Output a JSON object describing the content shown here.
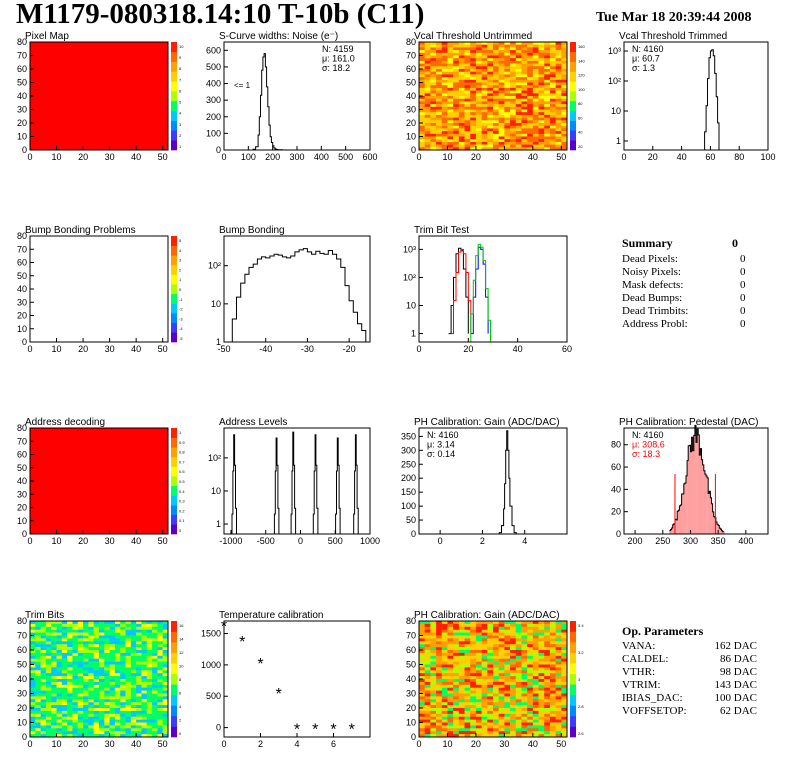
{
  "header": {
    "title": "M1179-080318.14:10 T-10b (C11)",
    "date": "Tue Mar 18 20:39:44 2008"
  },
  "colors": {
    "red": "#ff0000",
    "palette": [
      "#5c00c8",
      "#3c3cff",
      "#0088ff",
      "#00c8ff",
      "#00ff64",
      "#aaff00",
      "#ffff00",
      "#ffd000",
      "#ffa000",
      "#ff6a00",
      "#ff2000"
    ]
  },
  "summary": {
    "title": "Summary",
    "total": "0",
    "rows": [
      {
        "label": "Dead Pixels:",
        "value": "0"
      },
      {
        "label": "Noisy Pixels:",
        "value": "0"
      },
      {
        "label": "Mask defects:",
        "value": "0"
      },
      {
        "label": "Dead Bumps:",
        "value": "0"
      },
      {
        "label": "Dead Trimbits:",
        "value": "0"
      },
      {
        "label": "Address Probl:",
        "value": "0"
      }
    ]
  },
  "op_params": {
    "title": "Op. Parameters",
    "rows": [
      {
        "label": "VANA:",
        "value": "162 DAC"
      },
      {
        "label": "CALDEL:",
        "value": "86 DAC"
      },
      {
        "label": "VTHR:",
        "value": "98 DAC"
      },
      {
        "label": "VTRIM:",
        "value": "143 DAC"
      },
      {
        "label": "IBIAS_DAC:",
        "value": "100 DAC"
      },
      {
        "label": "VOFFSETOP:",
        "value": "62 DAC"
      }
    ]
  },
  "chart_data": [
    {
      "id": "pixel-map",
      "type": "heatmap",
      "title": "Pixel Map",
      "xlim": [
        0,
        52
      ],
      "ylim": [
        0,
        80
      ],
      "xticks": [
        "0",
        "10",
        "20",
        "30",
        "40",
        "50"
      ],
      "yticks": [
        "0",
        "10",
        "20",
        "30",
        "40",
        "50",
        "60",
        "70",
        "80"
      ],
      "fill": "uniform",
      "value": 10,
      "zticks": [
        "10",
        "9",
        "8",
        "7",
        "6",
        "5",
        "4",
        "3",
        "2",
        "1"
      ]
    },
    {
      "id": "s-curve-noise",
      "type": "line",
      "title": "S-Curve widths: Noise (e⁻)",
      "xlim": [
        0,
        600
      ],
      "ylim": [
        0,
        650
      ],
      "xticks": [
        "0",
        "100",
        "200",
        "300",
        "400",
        "500",
        "600"
      ],
      "yticks": [
        "0",
        "100",
        "200",
        "300",
        "400",
        "500",
        "600"
      ],
      "stats": [
        "N: 4159",
        "μ: 161.0",
        "σ: 18.2"
      ],
      "annotation": "<= 1",
      "x": [
        110,
        120,
        130,
        140,
        145,
        150,
        155,
        160,
        165,
        170,
        175,
        180,
        185,
        190,
        195,
        200,
        205,
        210,
        215,
        220,
        230,
        240
      ],
      "y": [
        0,
        5,
        20,
        90,
        200,
        330,
        480,
        560,
        580,
        500,
        380,
        260,
        150,
        80,
        45,
        25,
        12,
        6,
        3,
        2,
        1,
        0
      ]
    },
    {
      "id": "vcal-untrimmed",
      "type": "heatmap",
      "title": "Vcal Threshold Untrimmed",
      "xlim": [
        0,
        52
      ],
      "ylim": [
        0,
        80
      ],
      "xticks": [
        "0",
        "10",
        "20",
        "30",
        "40",
        "50"
      ],
      "yticks": [
        "0",
        "10",
        "20",
        "30",
        "40",
        "50",
        "60",
        "70",
        "80"
      ],
      "fill": "noisy-warm",
      "zticks": [
        "160",
        "140",
        "120",
        "100",
        "80",
        "60",
        "40",
        "20"
      ]
    },
    {
      "id": "vcal-trimmed",
      "type": "line",
      "title": "Vcal Threshold Trimmed",
      "xlim": [
        0,
        100
      ],
      "ylog": true,
      "ylim": [
        0.5,
        2000
      ],
      "xticks": [
        "0",
        "20",
        "40",
        "60",
        "80",
        "100"
      ],
      "yticks": [
        "1",
        "10",
        "10²",
        "10³"
      ],
      "stats": [
        "N: 4160",
        "μ: 60.7",
        "σ: 1.3"
      ],
      "x": [
        54,
        56,
        57,
        58,
        59,
        60,
        61,
        62,
        63,
        64,
        65,
        66
      ],
      "y": [
        0,
        2,
        15,
        120,
        600,
        1000,
        1100,
        700,
        180,
        30,
        4,
        0
      ]
    },
    {
      "id": "bump-bonding-problems",
      "type": "heatmap",
      "title": "Bump Bonding Problems",
      "xlim": [
        0,
        52
      ],
      "ylim": [
        0,
        80
      ],
      "xticks": [
        "0",
        "10",
        "20",
        "30",
        "40",
        "50"
      ],
      "yticks": [
        "0",
        "10",
        "20",
        "30",
        "40",
        "50",
        "60",
        "70",
        "80"
      ],
      "fill": "empty",
      "zticks": [
        "5",
        "4",
        "3",
        "2",
        "1",
        "0",
        "-1",
        "-2",
        "-3",
        "-4",
        "-5"
      ]
    },
    {
      "id": "bump-bonding",
      "type": "line",
      "title": "Bump Bonding",
      "xlim": [
        -50,
        -15
      ],
      "ylog": true,
      "ylim": [
        1,
        600
      ],
      "xticks": [
        "-50",
        "-40",
        "-30",
        "-20"
      ],
      "yticks": [
        "1",
        "10",
        "10²"
      ],
      "x": [
        -49,
        -48,
        -47,
        -46,
        -45,
        -44,
        -43,
        -42,
        -41,
        -40,
        -39,
        -38,
        -37,
        -36,
        -35,
        -34,
        -33,
        -32,
        -31,
        -30,
        -29,
        -28,
        -27,
        -26,
        -25,
        -24,
        -23,
        -22,
        -21,
        -20,
        -19,
        -18,
        -17,
        -16
      ],
      "y": [
        1,
        4,
        15,
        35,
        60,
        90,
        110,
        150,
        170,
        160,
        180,
        200,
        190,
        170,
        160,
        180,
        230,
        260,
        280,
        230,
        200,
        240,
        210,
        200,
        250,
        200,
        150,
        90,
        30,
        12,
        6,
        3,
        2,
        1
      ]
    },
    {
      "id": "trim-bit-test",
      "type": "line",
      "title": "Trim Bit Test",
      "xlim": [
        0,
        60
      ],
      "ylog": true,
      "ylim": [
        0.5,
        3000
      ],
      "xticks": [
        "0",
        "20",
        "40",
        "60"
      ],
      "yticks": [
        "1",
        "10",
        "10²",
        "10³"
      ],
      "series": [
        {
          "color": "#000000",
          "x": [
            12,
            13,
            14,
            15,
            16,
            17,
            18,
            19,
            20
          ],
          "y": [
            1,
            10,
            100,
            700,
            1100,
            900,
            200,
            20,
            1
          ]
        },
        {
          "color": "#ff0000",
          "x": [
            13,
            14,
            15,
            16,
            17,
            18,
            19,
            20,
            21
          ],
          "y": [
            1,
            15,
            150,
            800,
            1000,
            700,
            150,
            15,
            1
          ]
        },
        {
          "color": "#0000ff",
          "x": [
            21,
            22,
            23,
            24,
            25,
            26,
            27,
            28
          ],
          "y": [
            1,
            20,
            200,
            1200,
            1000,
            300,
            20,
            1
          ]
        },
        {
          "color": "#00c800",
          "x": [
            0,
            20,
            21,
            22,
            23,
            24,
            25,
            26,
            27,
            28,
            29,
            60
          ],
          "y": [
            0.5,
            0.5,
            5,
            80,
            600,
            1500,
            1200,
            400,
            40,
            3,
            0.5,
            0.5
          ]
        }
      ]
    },
    {
      "id": "address-decoding",
      "type": "heatmap",
      "title": "Address decoding",
      "xlim": [
        0,
        52
      ],
      "ylim": [
        0,
        80
      ],
      "xticks": [
        "0",
        "10",
        "20",
        "30",
        "40",
        "50"
      ],
      "yticks": [
        "0",
        "10",
        "20",
        "30",
        "40",
        "50",
        "60",
        "70",
        "80"
      ],
      "fill": "uniform",
      "value": 1,
      "zticks": [
        "1",
        "0.9",
        "0.8",
        "0.7",
        "0.6",
        "0.5",
        "0.4",
        "0.3",
        "0.2",
        "0.1",
        "0"
      ]
    },
    {
      "id": "address-levels",
      "type": "line",
      "title": "Address Levels",
      "xlim": [
        -1100,
        1000
      ],
      "ylog": true,
      "ylim": [
        0.5,
        800
      ],
      "xticks": [
        "-1000",
        "-500",
        "0",
        "500",
        "1000"
      ],
      "yticks": [
        "1",
        "10",
        "10²"
      ],
      "peaks": [
        -960,
        -350,
        -110,
        210,
        530,
        790
      ],
      "peak_heights": [
        500,
        400,
        600,
        500,
        400,
        500
      ]
    },
    {
      "id": "ph-gain",
      "type": "line",
      "title": "PH Calibration: Gain (ADC/DAC)",
      "xlim": [
        -1,
        6
      ],
      "ylim": [
        0,
        380
      ],
      "xticks": [
        "0",
        "2",
        "4"
      ],
      "yticks": [
        "0",
        "50",
        "100",
        "150",
        "200",
        "250",
        "300",
        "350"
      ],
      "stats": [
        "N: 4160",
        "μ: 3.14",
        "σ: 0.14"
      ],
      "x": [
        2.7,
        2.8,
        2.9,
        3.0,
        3.05,
        3.1,
        3.15,
        3.2,
        3.25,
        3.3,
        3.4,
        3.5,
        3.6
      ],
      "y": [
        0,
        5,
        30,
        90,
        180,
        300,
        370,
        300,
        200,
        100,
        30,
        5,
        0
      ]
    },
    {
      "id": "ph-pedestal",
      "type": "line",
      "title": "PH Calibration: Pedestal (DAC)",
      "xlim": [
        180,
        440
      ],
      "ylim": [
        0,
        95
      ],
      "xticks": [
        "200",
        "250",
        "300",
        "350",
        "400"
      ],
      "yticks": [
        "0",
        "20",
        "40",
        "60",
        "80"
      ],
      "stats": [
        "N: 4160",
        "μ: 308.6",
        "σ: 18.3"
      ],
      "mu": 308.6,
      "sigma": 18.3,
      "peak": 88,
      "cut_lines": [
        272,
        345
      ]
    },
    {
      "id": "trim-bits",
      "type": "heatmap",
      "title": "Trim Bits",
      "xlim": [
        0,
        52
      ],
      "ylim": [
        0,
        80
      ],
      "xticks": [
        "0",
        "10",
        "20",
        "30",
        "40",
        "50"
      ],
      "yticks": [
        "0",
        "10",
        "20",
        "30",
        "40",
        "50",
        "60",
        "70",
        "80"
      ],
      "fill": "noisy-green",
      "zticks": [
        "16",
        "14",
        "12",
        "10",
        "8",
        "6",
        "4",
        "2",
        "0"
      ]
    },
    {
      "id": "temperature-calibration",
      "type": "scatter",
      "title": "Temperature calibration",
      "xlim": [
        0,
        8
      ],
      "ylim": [
        -150,
        1700
      ],
      "xticks": [
        "0",
        "2",
        "4",
        "6"
      ],
      "yticks": [
        "0",
        "500",
        "1000",
        "1500"
      ],
      "x": [
        0,
        1,
        2,
        3,
        4,
        5,
        6,
        7
      ],
      "y": [
        1600,
        1350,
        1000,
        520,
        -50,
        -50,
        -50,
        -50
      ]
    },
    {
      "id": "ph-gain-map",
      "type": "heatmap",
      "title": "PH Calibration: Gain (ADC/DAC)",
      "xlim": [
        0,
        52
      ],
      "ylim": [
        0,
        80
      ],
      "xticks": [
        "0",
        "10",
        "20",
        "30",
        "40",
        "50"
      ],
      "yticks": [
        "0",
        "10",
        "20",
        "30",
        "40",
        "50",
        "60",
        "70",
        "80"
      ],
      "fill": "noisy-gain",
      "zticks": [
        "3.4",
        "3.2",
        "3",
        "2.8",
        "2.6"
      ]
    }
  ]
}
